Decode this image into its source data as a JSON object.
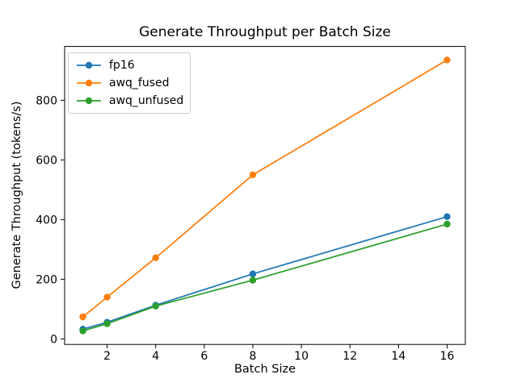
{
  "chart_data": {
    "type": "line",
    "title": "Generate Throughput per Batch Size",
    "xlabel": "Batch Size",
    "ylabel": "Generate Throughput (tokens/s)",
    "x": [
      1,
      2,
      4,
      8,
      16
    ],
    "series": [
      {
        "name": "fp16",
        "color": "#1f77b4",
        "values": [
          33,
          56,
          113,
          218,
          410
        ]
      },
      {
        "name": "awq_fused",
        "color": "#ff7f0e",
        "values": [
          74,
          140,
          272,
          550,
          935
        ]
      },
      {
        "name": "awq_unfused",
        "color": "#2ca02c",
        "values": [
          27,
          51,
          110,
          197,
          385
        ]
      }
    ],
    "xticks": [
      2,
      4,
      6,
      8,
      10,
      12,
      14,
      16
    ],
    "yticks": [
      0,
      200,
      400,
      600,
      800
    ],
    "xlim": [
      0.25,
      16.75
    ],
    "ylim": [
      -18.4,
      980.4
    ],
    "marker": "o",
    "grid": false,
    "legend_position": "upper left",
    "axis_color": "#000000",
    "background_color": "#ffffff"
  }
}
